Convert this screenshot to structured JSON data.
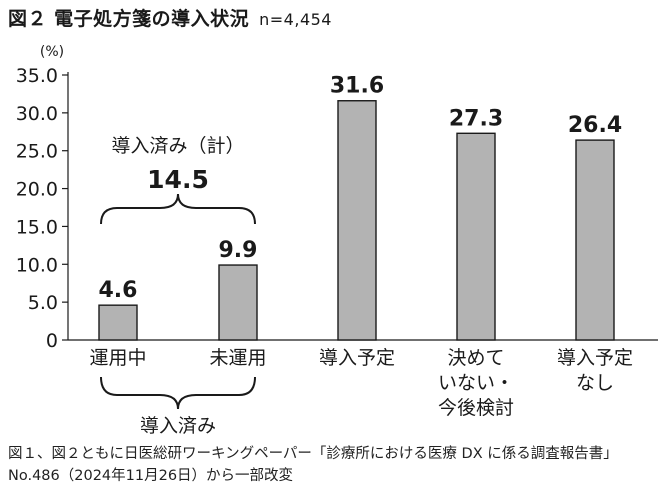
{
  "figure": {
    "title": "図２ 電子処方箋の導入状況",
    "sample": "n=4,454",
    "caption": "図１、図２ともに日医総研ワーキングペーパー「診療所における医療 DX に係る調査報告書」No.486（2024年11月26日）から一部改変"
  },
  "chart_data": {
    "type": "bar",
    "title": "図２ 電子処方箋の導入状況",
    "subtitle": "n=4,454",
    "xlabel": "",
    "ylabel": "(%)",
    "ylim": [
      0,
      35
    ],
    "yticks": [
      "0",
      "5.0",
      "10.0",
      "15.0",
      "20.0",
      "25.0",
      "30.0",
      "35.0"
    ],
    "ytick_values": [
      0,
      5,
      10,
      15,
      20,
      25,
      30,
      35
    ],
    "grid": false,
    "categories": [
      [
        "運用中"
      ],
      [
        "未運用"
      ],
      [
        "導入予定"
      ],
      [
        "決めて",
        "いない・",
        "今後検討"
      ],
      [
        "導入予定",
        "なし"
      ]
    ],
    "values": [
      4.6,
      9.9,
      31.6,
      27.3,
      26.4
    ],
    "value_labels": [
      "4.6",
      "9.9",
      "31.6",
      "27.3",
      "26.4"
    ],
    "bar_color": "#b3b3b3",
    "annotations": {
      "total_label": "導入済み（計）",
      "total_value": "14.5",
      "group_label": "導入済み"
    }
  }
}
